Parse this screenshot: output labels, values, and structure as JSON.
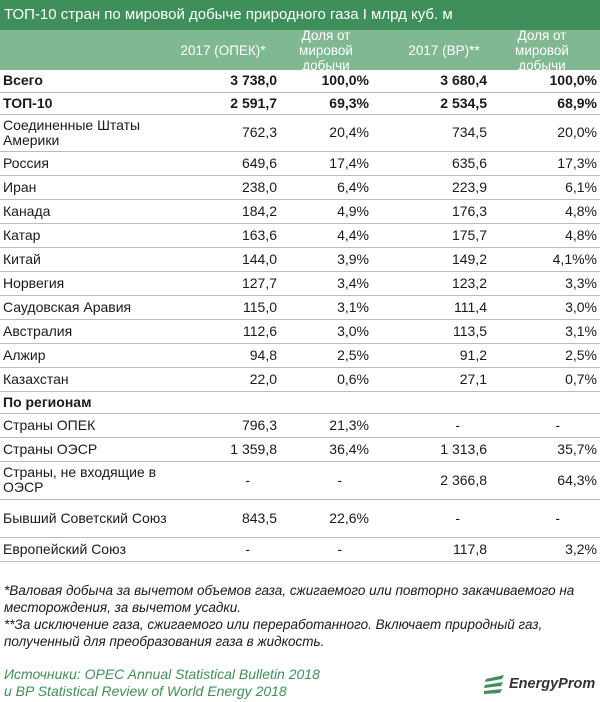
{
  "title": "ТОП-10 стран по мировой добыче природного газа I млрд куб. м",
  "header": {
    "col1": "2017 (ОПЕК)*",
    "col2": "Доля от мировой добычи",
    "col3": "2017 (BP)**",
    "col4": "Доля от мировой добычи"
  },
  "rows": [
    {
      "name": "Всего",
      "opec": "3 738,0",
      "opec_share": "100,0%",
      "bp": "3 680,4",
      "bp_share": "100,0%"
    },
    {
      "name": "ТОП-10",
      "opec": "2 591,7",
      "opec_share": "69,3%",
      "bp": "2 534,5",
      "bp_share": "68,9%"
    },
    {
      "name": "Соединенные Штаты Америки",
      "opec": "762,3",
      "opec_share": "20,4%",
      "bp": "734,5",
      "bp_share": "20,0%"
    },
    {
      "name": "Россия",
      "opec": "649,6",
      "opec_share": "17,4%",
      "bp": "635,6",
      "bp_share": "17,3%"
    },
    {
      "name": "Иран",
      "opec": "238,0",
      "opec_share": "6,4%",
      "bp": "223,9",
      "bp_share": "6,1%"
    },
    {
      "name": "Канада",
      "opec": "184,2",
      "opec_share": "4,9%",
      "bp": "176,3",
      "bp_share": "4,8%"
    },
    {
      "name": "Катар",
      "opec": "163,6",
      "opec_share": "4,4%",
      "bp": "175,7",
      "bp_share": "4,8%"
    },
    {
      "name": "Китай",
      "opec": "144,0",
      "opec_share": "3,9%",
      "bp": "149,2",
      "bp_share": "4,1%%"
    },
    {
      "name": "Норвегия",
      "opec": "127,7",
      "opec_share": "3,4%",
      "bp": "123,2",
      "bp_share": "3,3%"
    },
    {
      "name": "Саудовская Аравия",
      "opec": "115,0",
      "opec_share": "3,1%",
      "bp": "111,4",
      "bp_share": "3,0%"
    },
    {
      "name": "Австралия",
      "opec": "112,6",
      "opec_share": "3,0%",
      "bp": "113,5",
      "bp_share": "3,1%"
    },
    {
      "name": "Алжир",
      "opec": "94,8",
      "opec_share": "2,5%",
      "bp": "91,2",
      "bp_share": "2,5%"
    },
    {
      "name": "Казахстан",
      "opec": "22,0",
      "opec_share": "0,6%",
      "bp": "27,1",
      "bp_share": "0,7%"
    },
    {
      "name": "По регионам"
    },
    {
      "name": "Страны ОПЕК",
      "opec": "796,3",
      "opec_share": "21,3%",
      "bp": "-",
      "bp_share": "-"
    },
    {
      "name": "Страны ОЭСР",
      "opec": "1 359,8",
      "opec_share": "36,4%",
      "bp": "1 313,6",
      "bp_share": "35,7%"
    },
    {
      "name": "Страны, не входящие в ОЭСР",
      "opec": "-",
      "opec_share": "-",
      "bp": "2 366,8",
      "bp_share": "64,3%"
    },
    {
      "name": "Бывший Советский Союз",
      "opec": "843,5",
      "opec_share": "22,6%",
      "bp": "-",
      "bp_share": "-"
    },
    {
      "name": "Европейский Союз",
      "opec": "-",
      "opec_share": "-",
      "bp": "117,8",
      "bp_share": "3,2%"
    }
  ],
  "notes": {
    "note1": "*Валовая добыча за вычетом объемов газа, сжигаемого или повторно закачиваемого на месторождения, за вычетом усадки.",
    "note2": "**За исключение газа, сжигаемого или переработанного. Включает природный газ, полученный для преобразования газа в жидкость."
  },
  "sources": {
    "line1": "Источники: OPEC Annual Statistical Bulletin 2018",
    "line2": "и BP Statistical Review of World Energy 2018"
  },
  "logo": {
    "text": "EnergyProm",
    "icon": "energyprom-logo-icon"
  },
  "colors": {
    "title_bg": "#3f8f5a",
    "header_bg": "#7fb891",
    "source_text": "#3f8f5a"
  }
}
